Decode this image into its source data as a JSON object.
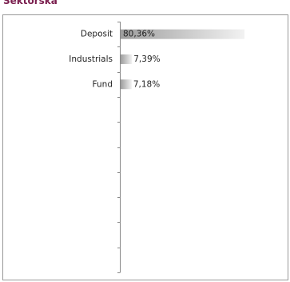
{
  "chart_data": {
    "type": "bar",
    "orientation": "horizontal",
    "title": "Sektorska",
    "categories": [
      "Deposit",
      "Industrials",
      "Fund",
      null,
      null,
      null,
      null,
      null,
      null,
      null
    ],
    "values": [
      80.36,
      7.39,
      7.18,
      null,
      null,
      null,
      null,
      null,
      null,
      null
    ],
    "value_labels": [
      "80,36%",
      "7,39%",
      "7,18%",
      null,
      null,
      null,
      null,
      null,
      null,
      null
    ],
    "xlim": [
      0,
      100
    ]
  }
}
